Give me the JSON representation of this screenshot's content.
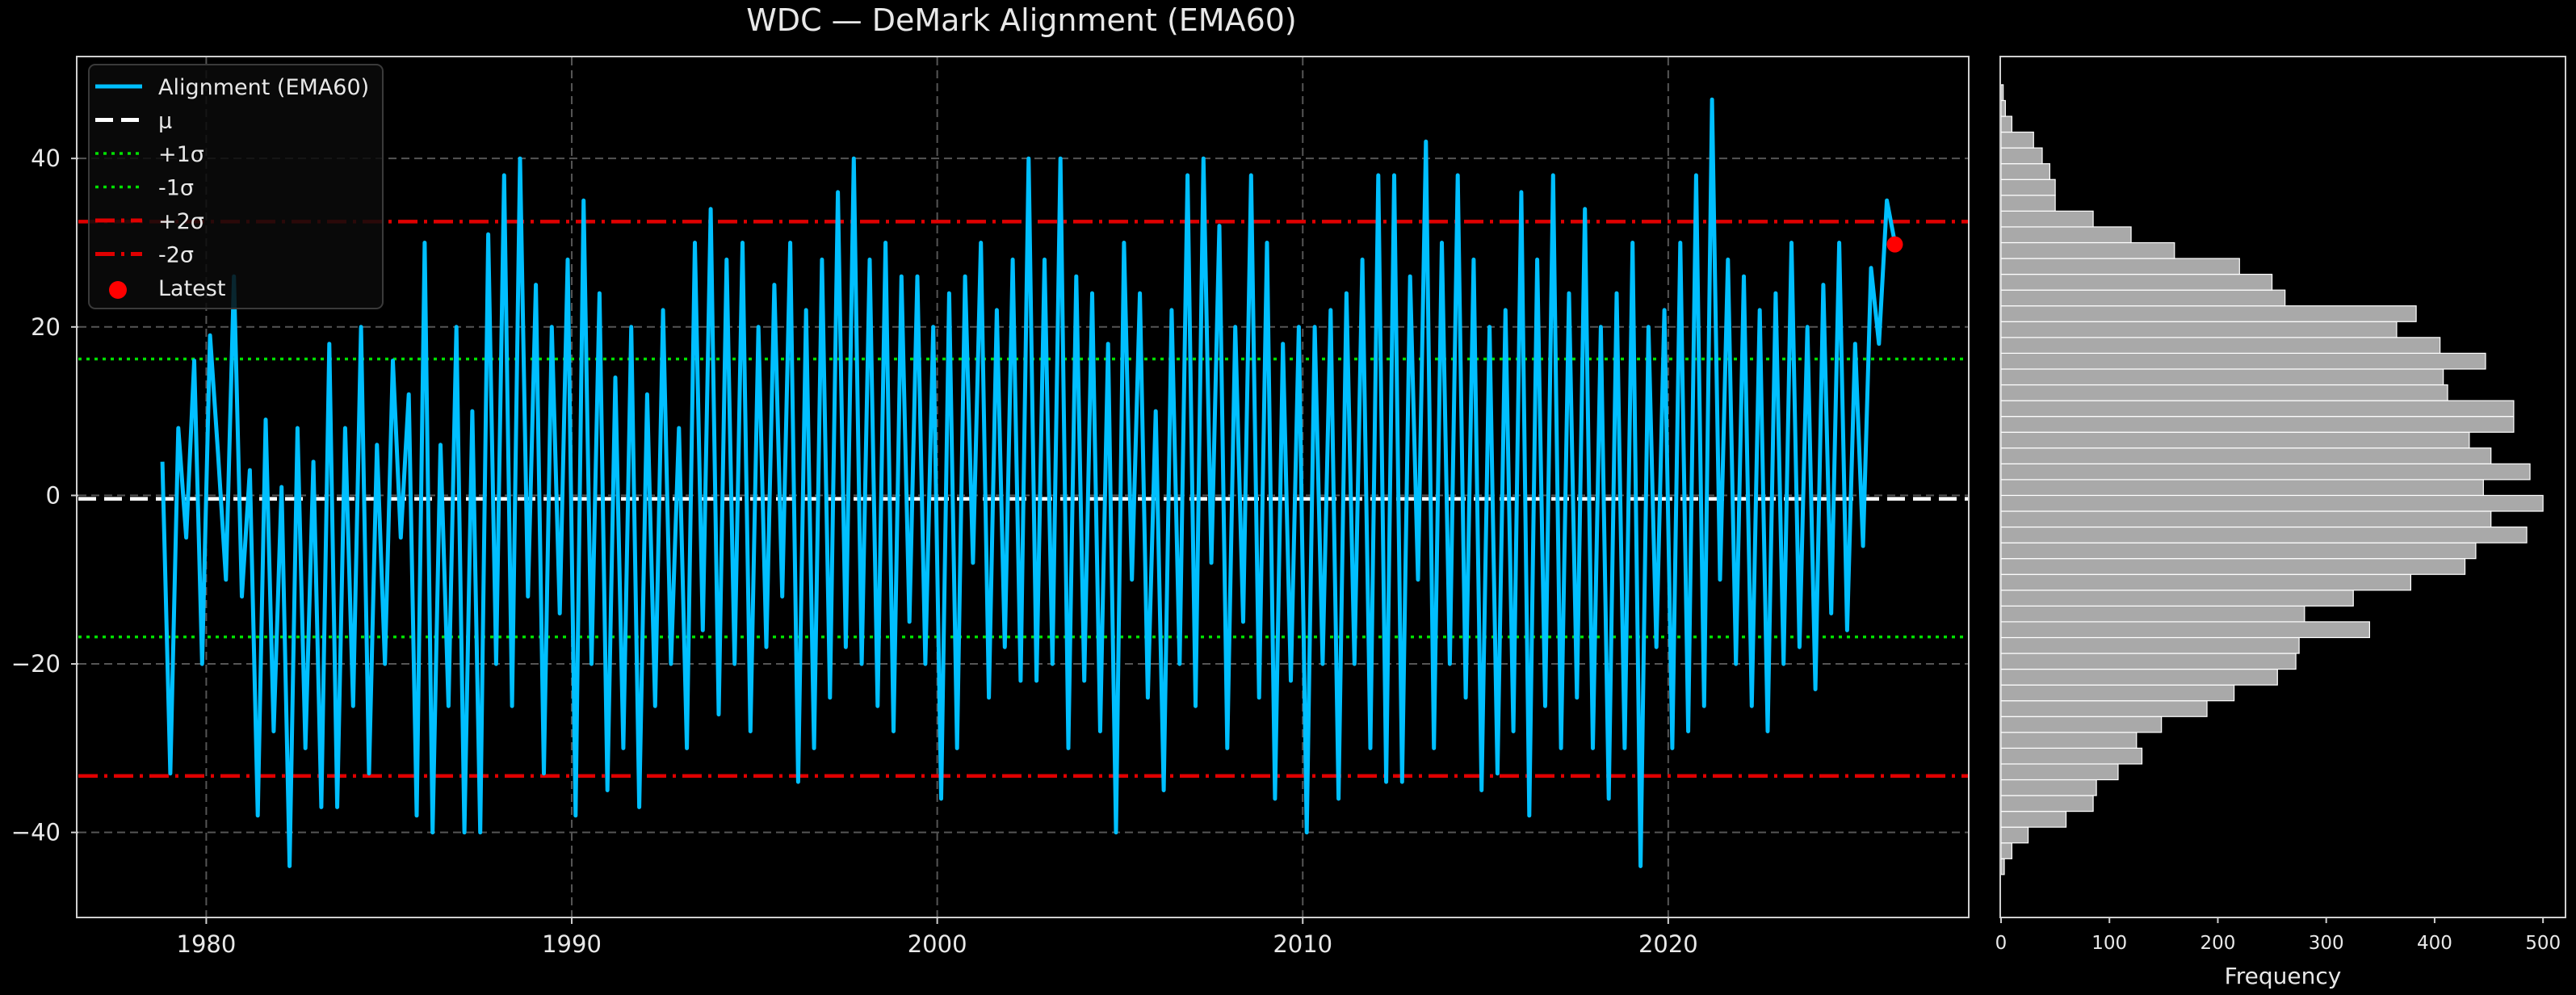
{
  "chart_data": [
    {
      "type": "line",
      "title": "WDC — DeMark Alignment (EMA60)",
      "xlabel": "",
      "ylabel": "",
      "xlim": [
        1976.5,
        2028.2
      ],
      "ylim": [
        -50,
        52
      ],
      "x_ticks": [
        1980,
        1990,
        2000,
        2010,
        2020
      ],
      "y_ticks": [
        -40,
        -20,
        0,
        20,
        40
      ],
      "grid": true,
      "legend_position": "top-left",
      "legend": [
        {
          "label": "Alignment (EMA60)",
          "style": "solid",
          "color": "#00BFFF"
        },
        {
          "label": "μ",
          "style": "dashed",
          "color": "#FFFFFF"
        },
        {
          "label": "+1σ",
          "style": "dotted",
          "color": "#00E000"
        },
        {
          "label": "-1σ",
          "style": "dotted",
          "color": "#00E000"
        },
        {
          "label": "+2σ",
          "style": "dashdot",
          "color": "#E00000"
        },
        {
          "label": "-2σ",
          "style": "dashdot",
          "color": "#E00000"
        },
        {
          "label": "Latest",
          "style": "marker",
          "color": "#FF0000"
        }
      ],
      "reference_lines": {
        "mu": -0.4,
        "plus1sigma": 16.2,
        "minus1sigma": -16.8,
        "plus2sigma": 32.5,
        "minus2sigma": -33.3
      },
      "latest": {
        "x": 2026.2,
        "y": 29.8
      },
      "series": [
        {
          "name": "Alignment (EMA60)",
          "color": "#00BFFF",
          "x_start": 1978.8,
          "x_end": 2026.2,
          "values": [
            4,
            -33,
            8,
            -5,
            16,
            -20,
            19,
            5,
            -10,
            26,
            -12,
            3,
            -38,
            9,
            -28,
            1,
            -44,
            8,
            -30,
            4,
            -37,
            18,
            -37,
            8,
            -25,
            20,
            -33,
            6,
            -20,
            16,
            -5,
            12,
            -38,
            30,
            -40,
            6,
            -25,
            20,
            -40,
            10,
            -40,
            31,
            -20,
            38,
            -25,
            40,
            -12,
            25,
            -33,
            20,
            -14,
            28,
            -38,
            35,
            -20,
            24,
            -35,
            14,
            -30,
            20,
            -37,
            12,
            -25,
            22,
            -20,
            8,
            -30,
            30,
            -16,
            34,
            -26,
            28,
            -20,
            30,
            -28,
            20,
            -18,
            25,
            -12,
            30,
            -34,
            22,
            -30,
            28,
            -24,
            36,
            -18,
            40,
            -20,
            28,
            -25,
            30,
            -28,
            26,
            -15,
            26,
            -20,
            20,
            -36,
            24,
            -30,
            26,
            -8,
            30,
            -24,
            22,
            -18,
            28,
            -22,
            40,
            -22,
            28,
            -20,
            40,
            -30,
            26,
            -22,
            24,
            -28,
            18,
            -40,
            30,
            -10,
            24,
            -24,
            10,
            -35,
            22,
            -20,
            38,
            -25,
            40,
            -8,
            32,
            -30,
            20,
            -15,
            38,
            -24,
            30,
            -36,
            18,
            -22,
            20,
            -40,
            20,
            -20,
            22,
            -36,
            24,
            -20,
            28,
            -30,
            38,
            -34,
            38,
            -34,
            26,
            -10,
            42,
            -30,
            30,
            -20,
            38,
            -24,
            28,
            -35,
            20,
            -33,
            22,
            -28,
            36,
            -38,
            28,
            -25,
            38,
            -30,
            24,
            -24,
            34,
            -30,
            20,
            -36,
            24,
            -30,
            30,
            -44,
            20,
            -18,
            22,
            -30,
            30,
            -28,
            38,
            -25,
            47,
            -10,
            28,
            -20,
            26,
            -25,
            22,
            -28,
            24,
            -20,
            30,
            -18,
            20,
            -23,
            25,
            -14,
            30,
            -16,
            18,
            -6,
            27,
            18,
            35,
            30
          ]
        }
      ]
    },
    {
      "type": "bar",
      "orientation": "horizontal",
      "title": "",
      "xlabel": "Frequency",
      "ylabel": "",
      "xlim": [
        0,
        520
      ],
      "ylim": [
        -50,
        52
      ],
      "x_ticks": [
        0,
        100,
        200,
        300,
        400,
        500
      ],
      "bin_start": -45,
      "bin_width": 1.875,
      "values": [
        3,
        10,
        25,
        60,
        85,
        88,
        108,
        130,
        125,
        148,
        190,
        215,
        255,
        272,
        275,
        340,
        280,
        325,
        378,
        428,
        438,
        485,
        452,
        500,
        445,
        488,
        452,
        432,
        473,
        473,
        412,
        408,
        447,
        405,
        365,
        383,
        262,
        250,
        220,
        160,
        120,
        85,
        50,
        50,
        45,
        38,
        30,
        10,
        4,
        2
      ]
    }
  ]
}
